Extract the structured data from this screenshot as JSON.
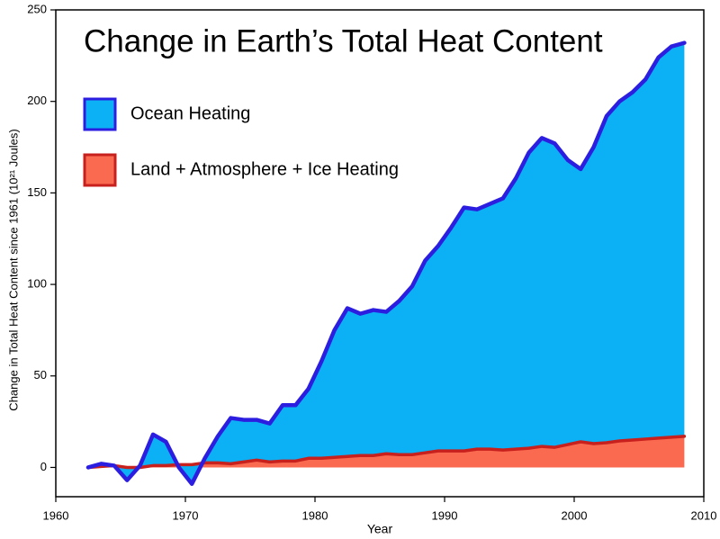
{
  "chart_data": {
    "type": "stacked-area",
    "title": "Change in Earth’s Total Heat Content",
    "x_label": "Year",
    "y_label": "Change in Total Heat Content since 1961 (10²¹ Joules)",
    "x": [
      1962.5,
      1963.5,
      1964.5,
      1965.5,
      1966.5,
      1967.5,
      1968.5,
      1969.5,
      1970.5,
      1971.5,
      1972.5,
      1973.5,
      1974.5,
      1975.5,
      1976.5,
      1977.5,
      1978.5,
      1979.5,
      1980.5,
      1981.5,
      1982.5,
      1983.5,
      1984.5,
      1985.5,
      1986.5,
      1987.5,
      1988.5,
      1989.5,
      1990.5,
      1991.5,
      1992.5,
      1993.5,
      1994.5,
      1995.5,
      1996.5,
      1997.5,
      1998.5,
      1999.5,
      2000.5,
      2001.5,
      2002.5,
      2003.5,
      2004.5,
      2005.5,
      2006.5,
      2007.5,
      2008.5
    ],
    "series": [
      {
        "name": "Ocean Heating",
        "color": "#0bb0f5",
        "line_color": "#2c1ee0",
        "text_color": "#1a1adb",
        "values": [
          0,
          1.5,
          0,
          -7,
          1,
          17,
          13,
          -1.5,
          -10.5,
          2.5,
          14.5,
          25,
          23,
          22,
          21,
          30.5,
          30.5,
          38,
          53,
          69.5,
          81,
          77.5,
          79.5,
          77.5,
          84,
          92,
          105,
          112,
          122,
          133,
          131,
          134,
          137.5,
          148,
          161.5,
          168.5,
          166,
          155.5,
          149,
          162,
          178.5,
          185.5,
          190,
          196.5,
          208,
          213.5,
          215
        ]
      },
      {
        "name": "Land + Atmosphere + Ice Heating",
        "color": "#f96a50",
        "line_color": "#c8201c",
        "text_color": "#c8201c",
        "values": [
          0,
          0.5,
          1,
          0,
          0,
          1,
          1,
          1.5,
          1.5,
          2.5,
          2.5,
          2,
          3,
          4,
          3,
          3.5,
          3.5,
          5,
          5,
          5.5,
          6,
          6.5,
          6.5,
          7.5,
          7,
          7,
          8,
          9,
          9,
          9,
          10,
          10,
          9.5,
          10,
          10.5,
          11.5,
          11,
          12.5,
          14,
          13,
          13.5,
          14.5,
          15,
          15.5,
          16,
          16.5,
          17
        ]
      }
    ],
    "xlim": [
      1960,
      2010
    ],
    "xticks": [
      1960,
      1970,
      1980,
      1990,
      2000,
      2010
    ],
    "ylim": [
      -16,
      250
    ],
    "yticks": [
      0,
      50,
      100,
      150,
      200,
      250
    ],
    "grid": false
  }
}
